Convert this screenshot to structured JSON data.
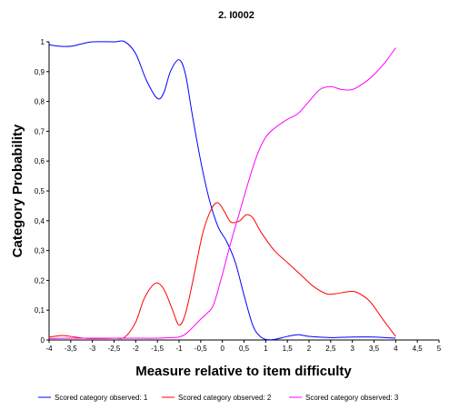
{
  "chart_data": {
    "type": "line",
    "title": "2. I0002",
    "xlabel": "Measure relative to item difficulty",
    "ylabel": "Category  Probability",
    "xlim": [
      -4,
      5
    ],
    "ylim": [
      0,
      1
    ],
    "x_ticks": [
      "-4",
      "-3,5",
      "-3",
      "-2,5",
      "-2",
      "-1,5",
      "-1",
      "-0,5",
      "0",
      "0,5",
      "1",
      "1,5",
      "2",
      "2,5",
      "3",
      "3,5",
      "4",
      "4,5",
      "5"
    ],
    "y_ticks": [
      "0",
      "0,1",
      "0,2",
      "0,3",
      "0,4",
      "0,5",
      "0,6",
      "0,7",
      "0,8",
      "0,9",
      "1"
    ],
    "legend_position": "bottom",
    "series": [
      {
        "name": "Scored category observed: 1",
        "color": "#0000ff",
        "points": [
          [
            -4,
            0.99
          ],
          [
            -3.75,
            0.985
          ],
          [
            -3.5,
            0.985
          ],
          [
            -3.25,
            0.993
          ],
          [
            -3,
            1.0
          ],
          [
            -2.5,
            1.0
          ],
          [
            -2.25,
            1.0
          ],
          [
            -2,
            0.96
          ],
          [
            -1.75,
            0.87
          ],
          [
            -1.5,
            0.81
          ],
          [
            -1.35,
            0.83
          ],
          [
            -1.2,
            0.9
          ],
          [
            -1.0,
            0.94
          ],
          [
            -0.85,
            0.89
          ],
          [
            -0.7,
            0.76
          ],
          [
            -0.5,
            0.6
          ],
          [
            -0.3,
            0.47
          ],
          [
            -0.1,
            0.38
          ],
          [
            0.1,
            0.33
          ],
          [
            0.3,
            0.26
          ],
          [
            0.5,
            0.15
          ],
          [
            0.7,
            0.05
          ],
          [
            0.85,
            0.015
          ],
          [
            1.0,
            0.002
          ],
          [
            1.2,
            0.002
          ],
          [
            1.5,
            0.012
          ],
          [
            1.75,
            0.018
          ],
          [
            2.0,
            0.012
          ],
          [
            2.5,
            0.008
          ],
          [
            3.0,
            0.01
          ],
          [
            3.5,
            0.01
          ],
          [
            4.0,
            0.006
          ]
        ]
      },
      {
        "name": "Scored category observed: 2",
        "color": "#ff0000",
        "points": [
          [
            -4,
            0.01
          ],
          [
            -3.7,
            0.015
          ],
          [
            -3.5,
            0.012
          ],
          [
            -3.2,
            0.006
          ],
          [
            -3,
            0.005
          ],
          [
            -2.5,
            0.006
          ],
          [
            -2.25,
            0.01
          ],
          [
            -2.0,
            0.06
          ],
          [
            -1.8,
            0.14
          ],
          [
            -1.55,
            0.19
          ],
          [
            -1.35,
            0.17
          ],
          [
            -1.15,
            0.1
          ],
          [
            -1.0,
            0.05
          ],
          [
            -0.85,
            0.09
          ],
          [
            -0.65,
            0.22
          ],
          [
            -0.45,
            0.36
          ],
          [
            -0.25,
            0.44
          ],
          [
            -0.1,
            0.46
          ],
          [
            0.05,
            0.43
          ],
          [
            0.2,
            0.395
          ],
          [
            0.4,
            0.4
          ],
          [
            0.55,
            0.42
          ],
          [
            0.7,
            0.41
          ],
          [
            0.9,
            0.36
          ],
          [
            1.2,
            0.3
          ],
          [
            1.5,
            0.26
          ],
          [
            1.8,
            0.22
          ],
          [
            2.1,
            0.18
          ],
          [
            2.4,
            0.155
          ],
          [
            2.6,
            0.155
          ],
          [
            2.9,
            0.162
          ],
          [
            3.1,
            0.16
          ],
          [
            3.4,
            0.13
          ],
          [
            3.7,
            0.07
          ],
          [
            4.0,
            0.012
          ]
        ]
      },
      {
        "name": "Scored category observed: 3",
        "color": "#ff00ff",
        "points": [
          [
            -4,
            0.005
          ],
          [
            -3.5,
            0.006
          ],
          [
            -3,
            0.006
          ],
          [
            -2.5,
            0.006
          ],
          [
            -2,
            0.006
          ],
          [
            -1.5,
            0.006
          ],
          [
            -1.2,
            0.008
          ],
          [
            -1.0,
            0.01
          ],
          [
            -0.85,
            0.02
          ],
          [
            -0.7,
            0.04
          ],
          [
            -0.5,
            0.07
          ],
          [
            -0.35,
            0.09
          ],
          [
            -0.2,
            0.12
          ],
          [
            0.0,
            0.22
          ],
          [
            0.2,
            0.33
          ],
          [
            0.4,
            0.43
          ],
          [
            0.6,
            0.53
          ],
          [
            0.8,
            0.62
          ],
          [
            1.0,
            0.68
          ],
          [
            1.2,
            0.71
          ],
          [
            1.5,
            0.74
          ],
          [
            1.75,
            0.76
          ],
          [
            2.0,
            0.8
          ],
          [
            2.25,
            0.84
          ],
          [
            2.5,
            0.85
          ],
          [
            2.75,
            0.84
          ],
          [
            3.0,
            0.84
          ],
          [
            3.25,
            0.86
          ],
          [
            3.5,
            0.89
          ],
          [
            3.75,
            0.93
          ],
          [
            4.0,
            0.98
          ]
        ]
      }
    ]
  }
}
